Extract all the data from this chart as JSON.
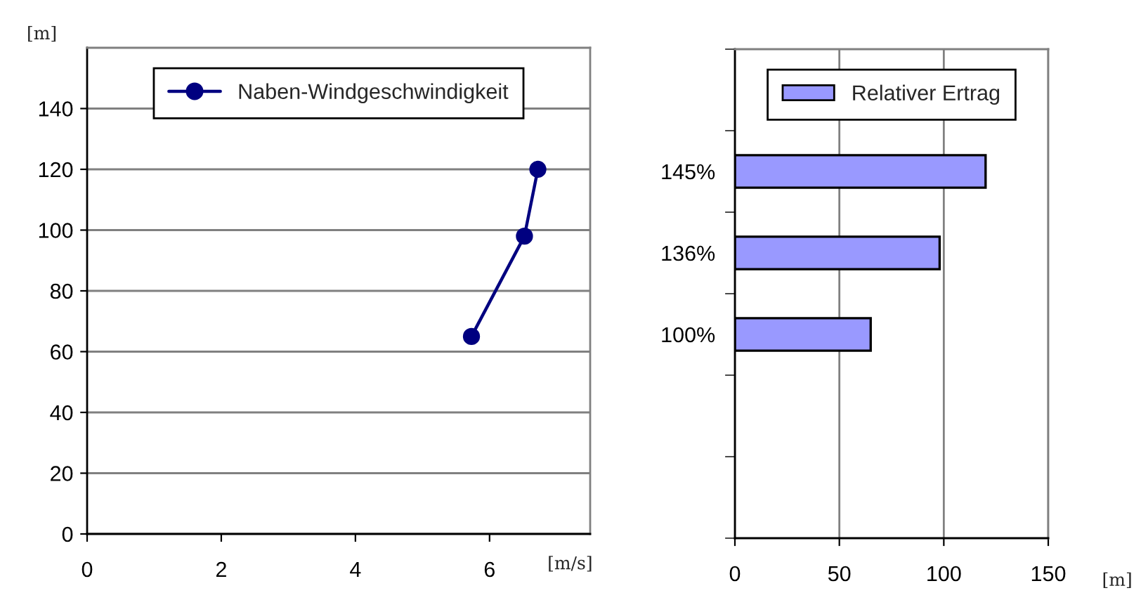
{
  "chart_data": [
    {
      "type": "line",
      "xlabel": "[m/s]",
      "ylabel": "[m]",
      "xlim": [
        0,
        7.5
      ],
      "xticks": [
        0,
        2,
        4,
        6
      ],
      "ylim": [
        0,
        160
      ],
      "yticks": [
        0,
        20,
        40,
        60,
        80,
        100,
        120,
        140
      ],
      "grid": "y",
      "legend": "top",
      "marker": "circle",
      "line_style": "solid",
      "series": [
        {
          "name": "Naben-Windgeschwindigkeit",
          "color": "#000080",
          "x": [
            5.73,
            6.52,
            6.72
          ],
          "values": [
            65,
            98,
            120
          ]
        }
      ]
    },
    {
      "type": "bar",
      "orientation": "horizontal",
      "xlabel": "[m]",
      "xlim": [
        0,
        150
      ],
      "xticks": [
        0,
        50,
        100,
        150
      ],
      "grid": "x",
      "legend": "top",
      "categories": [
        null,
        "145%",
        "136%",
        "100%",
        null,
        null
      ],
      "series": [
        {
          "name": "Relativer Ertrag",
          "color": "#9999ff",
          "values": [
            null,
            120,
            98,
            65,
            null,
            null
          ]
        }
      ]
    }
  ]
}
